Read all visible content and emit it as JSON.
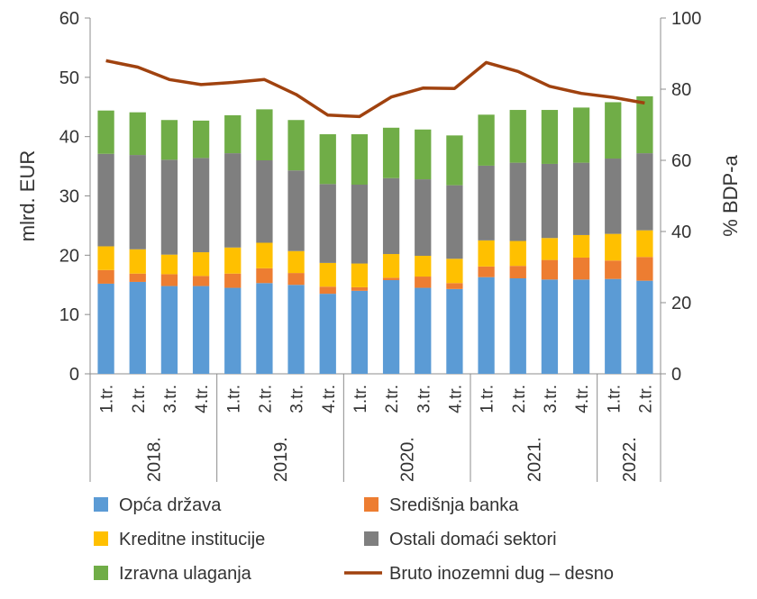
{
  "chart_data": {
    "type": "bar",
    "stacked": true,
    "ylabel_left": "mlrd. EUR",
    "ylabel_right": "% BDP-a",
    "ylim_left": [
      0,
      60
    ],
    "ylim_right": [
      0,
      100
    ],
    "yticks_left": [
      "0",
      "10",
      "20",
      "30",
      "40",
      "50",
      "60"
    ],
    "yticks_right": [
      "0",
      "20",
      "40",
      "60",
      "80",
      "100"
    ],
    "groups": [
      {
        "year": "2018.",
        "quarters": [
          "1.tr.",
          "2.tr.",
          "3.tr.",
          "4.tr."
        ]
      },
      {
        "year": "2019.",
        "quarters": [
          "1.tr.",
          "2.tr.",
          "3.tr.",
          "4.tr."
        ]
      },
      {
        "year": "2020.",
        "quarters": [
          "1.tr.",
          "2.tr.",
          "3.tr.",
          "4.tr."
        ]
      },
      {
        "year": "2021.",
        "quarters": [
          "1.tr.",
          "2.tr.",
          "3.tr.",
          "4.tr."
        ]
      },
      {
        "year": "2022.",
        "quarters": [
          "1.tr.",
          "2.tr."
        ]
      }
    ],
    "series": [
      {
        "name": "Opća država",
        "color": "#5b9bd5",
        "axis": "left",
        "values": [
          15.2,
          15.5,
          14.8,
          14.8,
          14.5,
          15.3,
          15.0,
          13.5,
          14.0,
          15.8,
          14.5,
          14.3,
          16.3,
          16.1,
          15.9,
          15.9,
          16.0,
          15.7
        ]
      },
      {
        "name": "Središnja banka",
        "color": "#ed7d31",
        "axis": "left",
        "values": [
          2.3,
          1.4,
          2.0,
          1.7,
          2.4,
          2.5,
          2.0,
          1.2,
          0.6,
          0.4,
          1.9,
          1.0,
          1.8,
          2.1,
          3.3,
          3.7,
          3.1,
          4.0
        ]
      },
      {
        "name": "Kreditne institucije",
        "color": "#ffc000",
        "axis": "left",
        "values": [
          4.0,
          4.1,
          3.3,
          4.0,
          4.4,
          4.3,
          3.7,
          4.0,
          4.0,
          4.0,
          3.5,
          4.1,
          4.4,
          4.2,
          3.7,
          3.8,
          4.5,
          4.5
        ]
      },
      {
        "name": "Ostali domaći sektori",
        "color": "#7f7f7f",
        "axis": "left",
        "values": [
          15.6,
          15.9,
          16.0,
          15.9,
          15.9,
          13.9,
          13.6,
          13.3,
          13.3,
          12.8,
          12.9,
          12.4,
          12.6,
          13.2,
          12.5,
          12.2,
          12.7,
          13.0
        ]
      },
      {
        "name": "Izravna ulaganja",
        "color": "#70ad47",
        "axis": "left",
        "values": [
          7.3,
          7.2,
          6.7,
          6.3,
          6.4,
          8.6,
          8.5,
          8.4,
          8.5,
          8.5,
          8.4,
          8.4,
          8.6,
          8.9,
          9.1,
          9.3,
          9.5,
          9.6
        ]
      },
      {
        "name": "Bruto inozemni dug – desno",
        "color": "#a0420f",
        "axis": "right",
        "type": "line",
        "values": [
          88.0,
          86.2,
          82.7,
          81.3,
          81.9,
          82.7,
          78.5,
          72.7,
          72.3,
          77.8,
          80.3,
          80.2,
          87.5,
          85.0,
          80.8,
          78.8,
          77.7,
          76.1
        ]
      }
    ],
    "legend": {
      "position": "bottom",
      "columns": 2
    }
  }
}
